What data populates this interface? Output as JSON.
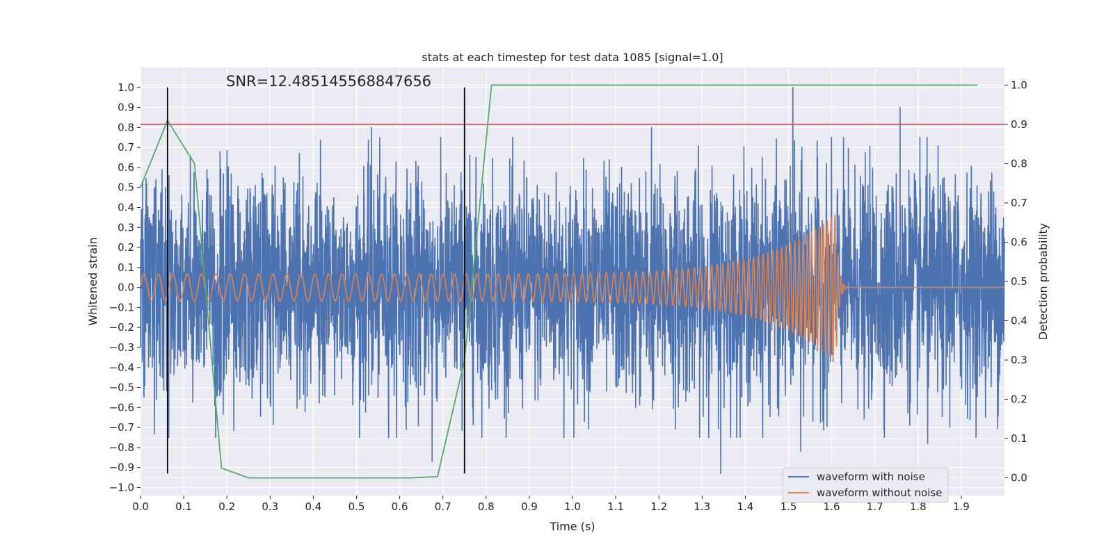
{
  "chart_data": {
    "type": "line",
    "title": "stats at each timestep for test data 1085 [signal=1.0]",
    "xlabel": "Time (s)",
    "ylabel_left": "Whitened strain",
    "ylabel_right": "Detection probability",
    "annotation": "SNR=12.485145568847656",
    "xlim": [
      0.0,
      2.0
    ],
    "ylim_left": [
      -1.04,
      1.1
    ],
    "ylim_right": [
      -0.045,
      1.045
    ],
    "grid": true,
    "legend_position": "lower right",
    "x_ticks": [
      0.0,
      0.1,
      0.2,
      0.3,
      0.4,
      0.5,
      0.6,
      0.7,
      0.8,
      0.9,
      1.0,
      1.1,
      1.2,
      1.3,
      1.4,
      1.5,
      1.6,
      1.7,
      1.8,
      1.9
    ],
    "x_tick_labels": [
      "0.0",
      "0.1",
      "0.2",
      "0.3",
      "0.4",
      "0.5",
      "0.6",
      "0.7",
      "0.8",
      "0.9",
      "1.0",
      "1.1",
      "1.2",
      "1.3",
      "1.4",
      "1.5",
      "1.6",
      "1.7",
      "1.8",
      "1.9"
    ],
    "y_ticks_left": [
      -1.0,
      -0.9,
      -0.8,
      -0.7,
      -0.6,
      -0.5,
      -0.4,
      -0.3,
      -0.2,
      -0.1,
      0.0,
      0.1,
      0.2,
      0.3,
      0.4,
      0.5,
      0.6,
      0.7,
      0.8,
      0.9,
      1.0
    ],
    "y_tick_labels_left": [
      "−1.0",
      "−0.9",
      "−0.8",
      "−0.7",
      "−0.6",
      "−0.5",
      "−0.4",
      "−0.3",
      "−0.2",
      "−0.1",
      "0.0",
      "0.1",
      "0.2",
      "0.3",
      "0.4",
      "0.5",
      "0.6",
      "0.7",
      "0.8",
      "0.9",
      "1.0"
    ],
    "y_ticks_right": [
      0.0,
      0.1,
      0.2,
      0.3,
      0.4,
      0.5,
      0.6,
      0.7,
      0.8,
      0.9,
      1.0
    ],
    "y_tick_labels_right": [
      "0.0",
      "0.1",
      "0.2",
      "0.3",
      "0.4",
      "0.5",
      "0.6",
      "0.7",
      "0.8",
      "0.9",
      "1.0"
    ],
    "series": [
      {
        "name": "waveform with noise",
        "color": "#4c72b0",
        "axis": "left",
        "noise_std": 0.27,
        "time_range": [
          0.0,
          2.0
        ],
        "peaks": [
          {
            "x": 0.066,
            "y": 0.56
          },
          {
            "x": 0.184,
            "y": 0.68
          },
          {
            "x": 0.368,
            "y": 0.67
          },
          {
            "x": 0.535,
            "y": 0.8
          },
          {
            "x": 0.675,
            "y": -0.87
          },
          {
            "x": 1.183,
            "y": 0.8
          },
          {
            "x": 1.343,
            "y": -0.93
          },
          {
            "x": 1.51,
            "y": 1.0
          },
          {
            "x": 1.528,
            "y": -0.82
          },
          {
            "x": 1.758,
            "y": 0.9
          },
          {
            "x": 1.822,
            "y": -0.78
          },
          {
            "x": 0.032,
            "y": -0.73
          }
        ]
      },
      {
        "name": "waveform without noise",
        "color": "#dd8452",
        "axis": "left",
        "description_values": {
          "t_merge": 1.61,
          "f_start_hz": 30,
          "f_end_hz": 115,
          "amp_start": 0.068,
          "amp_peak": 0.37,
          "t_end": 1.635
        }
      },
      {
        "name": "",
        "color": "#55a868",
        "axis": "right",
        "x": [
          0.0,
          0.0625,
          0.125,
          0.1875,
          0.25,
          0.3125,
          0.375,
          0.4375,
          0.5,
          0.5625,
          0.625,
          0.6875,
          0.75,
          0.8125,
          0.875,
          0.9375,
          1.0,
          1.0625,
          1.125,
          1.1875,
          1.25,
          1.3125,
          1.375,
          1.4375,
          1.5,
          1.5625,
          1.625,
          1.6875,
          1.75,
          1.8125,
          1.875,
          1.9375
        ],
        "y": [
          0.74,
          0.91,
          0.8,
          0.025,
          0.0,
          0.0,
          0.0,
          0.0,
          0.0,
          0.0,
          0.0,
          0.003,
          0.3,
          1.0,
          1.0,
          1.0,
          1.0,
          1.0,
          1.0,
          1.0,
          1.0,
          1.0,
          1.0,
          1.0,
          1.0,
          1.0,
          1.0,
          1.0,
          1.0,
          1.0,
          1.0,
          1.0
        ]
      }
    ],
    "threshold_line": {
      "axis": "right",
      "y": 0.9,
      "color": "#c44e52"
    },
    "vertical_lines": [
      {
        "x": 0.0625,
        "y_range": [
          -0.93,
          1.0
        ],
        "color": "#000000"
      },
      {
        "x": 0.75,
        "y_range": [
          -0.93,
          1.0
        ],
        "color": "#000000"
      }
    ],
    "legend": [
      "waveform with noise",
      "waveform without noise"
    ]
  }
}
